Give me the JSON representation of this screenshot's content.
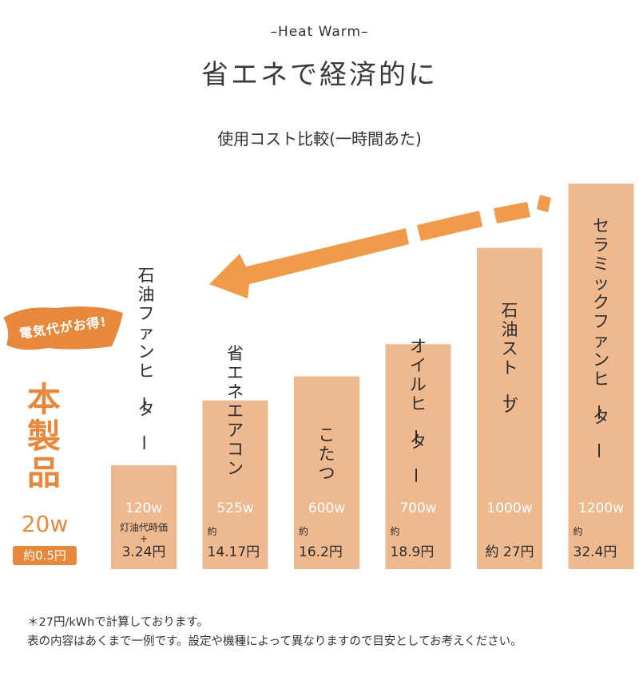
{
  "header": {
    "tagline": "–Heat Warm–",
    "title": "省エネで経済的に",
    "subtitle": "使用コスト比較(一時間あた)"
  },
  "badge": {
    "text": "電気代がお得!"
  },
  "product": {
    "name": "本製品",
    "watt": "20w",
    "cost": "約0.5円"
  },
  "chart_data": {
    "type": "bar",
    "categories": [
      "石油ファンヒーター",
      "省エネエアコン",
      "こたつ",
      "オイルヒーター",
      "石油ストーブ",
      "セラミックファンヒーター"
    ],
    "values": [
      120,
      525,
      600,
      700,
      1000,
      1200
    ],
    "watt_labels": [
      "120w",
      "525w",
      "600w",
      "700w",
      "1000w",
      "1200w"
    ],
    "cost_labels": [
      {
        "prefix": "灯油代時価\n+",
        "value": "3.24円"
      },
      {
        "prefix": "約",
        "value": "14.17円"
      },
      {
        "prefix": "約",
        "value": "16.2円"
      },
      {
        "prefix": "約",
        "value": "18.9円"
      },
      {
        "prefix": "約",
        "value": "27円"
      },
      {
        "prefix": "約",
        "value": "32.4円"
      }
    ],
    "bar_color": "#efb990",
    "accent_color": "#e8883c"
  },
  "notes": {
    "line1": "＊27円/kWhで計算しております。",
    "line2": "表の内容はあくまで一例です。設定や機種によって異なりますので目安としてお考えください。"
  }
}
